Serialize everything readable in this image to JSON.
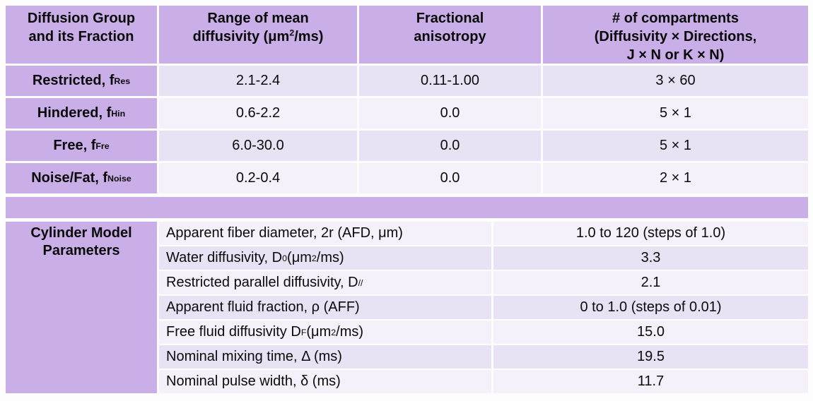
{
  "colors": {
    "header_purple": "#c9aee7",
    "row_dark_lavender": "#e9e2f5",
    "row_light_lavender": "#f4f1fb",
    "text": "#0a0a0a"
  },
  "diffusion_table": {
    "headers": [
      "Diffusion Group<br>and its Fraction",
      "Range of mean<br>diffusivity (μm<sup>2</sup>/ms)",
      "Fractional<br>anisotropy",
      "# of compartments<br>(Diffusivity × Directions,<br>J × N or K × N)"
    ],
    "rows": [
      {
        "group": "Restricted, f<sub>Res</sub>",
        "mean_diffusivity": "2.1-2.4",
        "fractional_anisotropy": "0.11-1.00",
        "compartments": "3 × 60"
      },
      {
        "group": "Hindered, f<sub>Hin</sub>",
        "mean_diffusivity": "0.6-2.2",
        "fractional_anisotropy": "0.0",
        "compartments": "5 × 1"
      },
      {
        "group": "Free, f<sub>Fre</sub>",
        "mean_diffusivity": "6.0-30.0",
        "fractional_anisotropy": "0.0",
        "compartments": "5 × 1"
      },
      {
        "group": "Noise/Fat, f<sub>Noise</sub>",
        "mean_diffusivity": "0.2-0.4",
        "fractional_anisotropy": "0.0",
        "compartments": "2 × 1"
      }
    ]
  },
  "cylinder_table": {
    "section_label": "Cylinder Model Parameters",
    "rows": [
      {
        "parameter": "Apparent fiber diameter, 2r (AFD, μm)",
        "value": "1.0 to 120 (steps of 1.0)"
      },
      {
        "parameter": "Water diffusivity, D<sub>0</sub> (μm<sup>2</sup>/ms)",
        "value": "3.3"
      },
      {
        "parameter": "Restricted parallel diffusivity, D<sub>//</sub>",
        "value": "2.1"
      },
      {
        "parameter": "Apparent fluid fraction, ρ (AFF)",
        "value": "0 to 1.0 (steps of 0.01)"
      },
      {
        "parameter": "Free fluid diffusivity D<sub>F</sub> (μm<sup>2</sup>/ms)",
        "value": "15.0"
      },
      {
        "parameter": "Nominal mixing time, Δ (ms)",
        "value": "19.5"
      },
      {
        "parameter": "Nominal pulse width, δ (ms)",
        "value": "11.7"
      }
    ]
  }
}
